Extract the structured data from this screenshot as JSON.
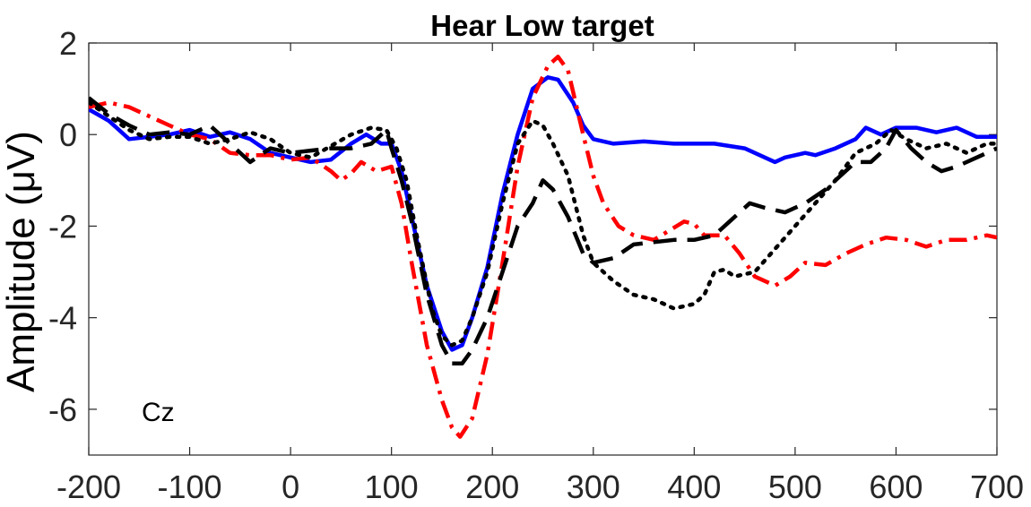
{
  "chart_data": {
    "type": "line",
    "title": "Hear Low target",
    "ylabel": "Amplitude (μV)",
    "xlabel": "",
    "annotation": "Cz",
    "xlim": [
      -200,
      700
    ],
    "ylim": [
      -7,
      2
    ],
    "xticks": [
      -200,
      -100,
      0,
      100,
      200,
      300,
      400,
      500,
      600,
      700
    ],
    "yticks": [
      2,
      0,
      -2,
      -4,
      -6
    ],
    "grid": false,
    "series": [
      {
        "style": "solid",
        "color": "#0000ff",
        "points": [
          [
            -200,
            0.55
          ],
          [
            -180,
            0.3
          ],
          [
            -160,
            -0.1
          ],
          [
            -140,
            -0.05
          ],
          [
            -120,
            0.0
          ],
          [
            -100,
            0.1
          ],
          [
            -80,
            -0.05
          ],
          [
            -60,
            0.05
          ],
          [
            -40,
            -0.1
          ],
          [
            -20,
            -0.4
          ],
          [
            0,
            -0.5
          ],
          [
            20,
            -0.6
          ],
          [
            40,
            -0.55
          ],
          [
            60,
            -0.2
          ],
          [
            75,
            0.0
          ],
          [
            90,
            -0.2
          ],
          [
            100,
            -0.2
          ],
          [
            110,
            -0.8
          ],
          [
            120,
            -1.8
          ],
          [
            135,
            -3.3
          ],
          [
            150,
            -4.3
          ],
          [
            160,
            -4.7
          ],
          [
            170,
            -4.6
          ],
          [
            180,
            -4.0
          ],
          [
            195,
            -2.9
          ],
          [
            210,
            -1.3
          ],
          [
            225,
            0.0
          ],
          [
            240,
            1.0
          ],
          [
            255,
            1.25
          ],
          [
            265,
            1.2
          ],
          [
            280,
            0.7
          ],
          [
            290,
            0.2
          ],
          [
            300,
            -0.1
          ],
          [
            320,
            -0.2
          ],
          [
            350,
            -0.15
          ],
          [
            380,
            -0.2
          ],
          [
            400,
            -0.2
          ],
          [
            420,
            -0.2
          ],
          [
            450,
            -0.3
          ],
          [
            470,
            -0.5
          ],
          [
            480,
            -0.6
          ],
          [
            490,
            -0.5
          ],
          [
            510,
            -0.4
          ],
          [
            520,
            -0.45
          ],
          [
            540,
            -0.3
          ],
          [
            560,
            -0.1
          ],
          [
            570,
            0.15
          ],
          [
            585,
            0.0
          ],
          [
            600,
            0.15
          ],
          [
            620,
            0.15
          ],
          [
            640,
            0.05
          ],
          [
            660,
            0.15
          ],
          [
            680,
            -0.05
          ],
          [
            700,
            -0.05
          ]
        ]
      },
      {
        "style": "dashdot",
        "color": "#ff0000",
        "points": [
          [
            -200,
            0.6
          ],
          [
            -180,
            0.7
          ],
          [
            -160,
            0.6
          ],
          [
            -140,
            0.4
          ],
          [
            -120,
            0.2
          ],
          [
            -100,
            0.0
          ],
          [
            -80,
            -0.1
          ],
          [
            -60,
            -0.4
          ],
          [
            -40,
            -0.45
          ],
          [
            -20,
            -0.45
          ],
          [
            0,
            -0.55
          ],
          [
            20,
            -0.5
          ],
          [
            40,
            -0.8
          ],
          [
            50,
            -1.0
          ],
          [
            60,
            -0.85
          ],
          [
            70,
            -0.6
          ],
          [
            85,
            -0.8
          ],
          [
            100,
            -0.7
          ],
          [
            110,
            -1.5
          ],
          [
            120,
            -2.8
          ],
          [
            135,
            -4.6
          ],
          [
            150,
            -5.8
          ],
          [
            160,
            -6.4
          ],
          [
            168,
            -6.6
          ],
          [
            180,
            -6.2
          ],
          [
            195,
            -4.8
          ],
          [
            210,
            -2.8
          ],
          [
            225,
            -0.7
          ],
          [
            240,
            0.8
          ],
          [
            255,
            1.5
          ],
          [
            265,
            1.7
          ],
          [
            275,
            1.4
          ],
          [
            290,
            0.0
          ],
          [
            300,
            -0.9
          ],
          [
            310,
            -1.5
          ],
          [
            325,
            -2.0
          ],
          [
            340,
            -2.2
          ],
          [
            350,
            -2.25
          ],
          [
            360,
            -2.3
          ],
          [
            375,
            -2.1
          ],
          [
            390,
            -1.9
          ],
          [
            400,
            -1.95
          ],
          [
            410,
            -2.2
          ],
          [
            430,
            -2.2
          ],
          [
            445,
            -2.6
          ],
          [
            460,
            -3.1
          ],
          [
            480,
            -3.3
          ],
          [
            495,
            -3.1
          ],
          [
            510,
            -2.8
          ],
          [
            530,
            -2.85
          ],
          [
            550,
            -2.6
          ],
          [
            570,
            -2.4
          ],
          [
            590,
            -2.25
          ],
          [
            610,
            -2.3
          ],
          [
            630,
            -2.45
          ],
          [
            650,
            -2.3
          ],
          [
            670,
            -2.3
          ],
          [
            690,
            -2.2
          ],
          [
            700,
            -2.25
          ]
        ]
      },
      {
        "style": "dashed",
        "color": "#000000",
        "points": [
          [
            -200,
            0.8
          ],
          [
            -180,
            0.45
          ],
          [
            -160,
            0.2
          ],
          [
            -140,
            0.0
          ],
          [
            -120,
            0.05
          ],
          [
            -100,
            0.0
          ],
          [
            -80,
            0.2
          ],
          [
            -60,
            -0.2
          ],
          [
            -40,
            -0.6
          ],
          [
            -20,
            -0.3
          ],
          [
            0,
            -0.4
          ],
          [
            20,
            -0.35
          ],
          [
            40,
            -0.3
          ],
          [
            60,
            -0.3
          ],
          [
            80,
            -0.2
          ],
          [
            95,
            0.1
          ],
          [
            100,
            -0.3
          ],
          [
            110,
            -1.0
          ],
          [
            120,
            -1.9
          ],
          [
            135,
            -3.5
          ],
          [
            150,
            -4.6
          ],
          [
            160,
            -5.0
          ],
          [
            170,
            -5.0
          ],
          [
            180,
            -4.7
          ],
          [
            195,
            -4.0
          ],
          [
            210,
            -3.0
          ],
          [
            225,
            -2.0
          ],
          [
            240,
            -1.5
          ],
          [
            250,
            -1.0
          ],
          [
            260,
            -1.2
          ],
          [
            275,
            -1.8
          ],
          [
            290,
            -2.6
          ],
          [
            300,
            -2.8
          ],
          [
            320,
            -2.7
          ],
          [
            340,
            -2.4
          ],
          [
            360,
            -2.35
          ],
          [
            380,
            -2.3
          ],
          [
            400,
            -2.3
          ],
          [
            420,
            -2.2
          ],
          [
            440,
            -1.8
          ],
          [
            455,
            -1.5
          ],
          [
            470,
            -1.6
          ],
          [
            490,
            -1.7
          ],
          [
            510,
            -1.5
          ],
          [
            530,
            -1.2
          ],
          [
            545,
            -0.9
          ],
          [
            560,
            -0.6
          ],
          [
            575,
            -0.6
          ],
          [
            590,
            -0.3
          ],
          [
            600,
            0.1
          ],
          [
            615,
            -0.3
          ],
          [
            630,
            -0.6
          ],
          [
            645,
            -0.8
          ],
          [
            660,
            -0.7
          ],
          [
            680,
            -0.5
          ],
          [
            700,
            -0.3
          ]
        ]
      },
      {
        "style": "dotted",
        "color": "#000000",
        "points": [
          [
            -200,
            0.7
          ],
          [
            -180,
            0.4
          ],
          [
            -160,
            0.1
          ],
          [
            -140,
            -0.1
          ],
          [
            -120,
            -0.05
          ],
          [
            -100,
            -0.05
          ],
          [
            -80,
            -0.2
          ],
          [
            -60,
            -0.1
          ],
          [
            -40,
            0.05
          ],
          [
            -20,
            -0.1
          ],
          [
            0,
            -0.4
          ],
          [
            20,
            -0.5
          ],
          [
            40,
            -0.25
          ],
          [
            60,
            0.0
          ],
          [
            80,
            0.15
          ],
          [
            95,
            0.1
          ],
          [
            105,
            -0.3
          ],
          [
            115,
            -1.0
          ],
          [
            125,
            -2.2
          ],
          [
            140,
            -3.8
          ],
          [
            150,
            -4.4
          ],
          [
            160,
            -4.6
          ],
          [
            170,
            -4.5
          ],
          [
            180,
            -4.0
          ],
          [
            195,
            -3.0
          ],
          [
            210,
            -1.5
          ],
          [
            225,
            -0.2
          ],
          [
            240,
            0.3
          ],
          [
            250,
            0.2
          ],
          [
            260,
            -0.2
          ],
          [
            275,
            -0.9
          ],
          [
            290,
            -2.2
          ],
          [
            300,
            -2.8
          ],
          [
            320,
            -3.2
          ],
          [
            340,
            -3.5
          ],
          [
            360,
            -3.6
          ],
          [
            380,
            -3.8
          ],
          [
            400,
            -3.7
          ],
          [
            410,
            -3.5
          ],
          [
            420,
            -3.0
          ],
          [
            430,
            -2.95
          ],
          [
            440,
            -3.1
          ],
          [
            460,
            -3.0
          ],
          [
            480,
            -2.5
          ],
          [
            500,
            -2.0
          ],
          [
            520,
            -1.5
          ],
          [
            540,
            -1.0
          ],
          [
            560,
            -0.4
          ],
          [
            580,
            -0.2
          ],
          [
            595,
            0.1
          ],
          [
            610,
            -0.1
          ],
          [
            630,
            -0.3
          ],
          [
            650,
            -0.2
          ],
          [
            670,
            -0.4
          ],
          [
            690,
            -0.2
          ],
          [
            700,
            -0.2
          ]
        ]
      }
    ]
  }
}
